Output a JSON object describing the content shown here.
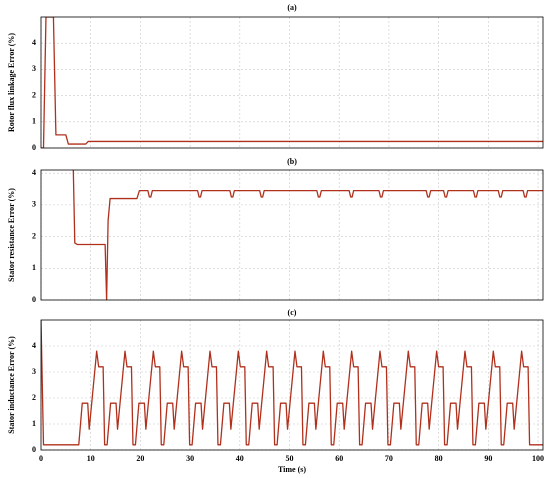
{
  "chart_data": [
    {
      "type": "line",
      "title": "(a)",
      "y_label": "Rotor flux linkage Error (%)",
      "xlim": [
        0,
        101
      ],
      "ylim": [
        0,
        5
      ],
      "xticks": [
        0,
        10,
        20,
        30,
        40,
        50,
        60,
        70,
        80,
        90,
        100
      ],
      "show_xtick_labels": false,
      "yticks": [
        0,
        1,
        2,
        3,
        4
      ],
      "grid": true,
      "color": "#b0301c",
      "x": [
        0,
        0.5,
        1,
        2.5,
        3,
        5,
        5.5,
        9,
        9.5,
        101
      ],
      "values": [
        0,
        0,
        5,
        5,
        0.5,
        0.5,
        0.15,
        0.15,
        0.25,
        0.25
      ]
    },
    {
      "type": "line",
      "title": "(b)",
      "y_label": "Stator resistance Error (%)",
      "xlim": [
        0,
        101
      ],
      "ylim": [
        0,
        4.1
      ],
      "xticks": [
        0,
        10,
        20,
        30,
        40,
        50,
        60,
        70,
        80,
        90,
        100
      ],
      "show_xtick_labels": false,
      "yticks": [
        0,
        1,
        2,
        3,
        4
      ],
      "grid": true,
      "color": "#b0301c",
      "x": [
        6.5,
        6.8,
        7.3,
        12.9,
        13.2,
        13.5,
        13.9,
        19.3,
        19.8,
        21.5,
        21.8,
        22.1,
        22.4,
        31.5,
        31.8,
        32.1,
        32.4,
        38,
        38.3,
        38.6,
        38.9,
        44,
        44.3,
        44.6,
        44.9,
        55.5,
        55.8,
        56.1,
        56.4,
        62,
        62.3,
        62.6,
        62.9,
        68,
        68.3,
        68.6,
        68.9,
        77.5,
        77.8,
        78.1,
        78.4,
        81,
        81.3,
        81.6,
        81.9,
        87,
        87.3,
        87.6,
        87.9,
        92,
        92.3,
        92.6,
        92.9,
        97,
        97.3,
        97.6,
        97.9,
        101
      ],
      "values": [
        4.1,
        1.8,
        1.75,
        1.75,
        0,
        2.5,
        3.2,
        3.2,
        3.45,
        3.45,
        3.25,
        3.25,
        3.45,
        3.45,
        3.25,
        3.25,
        3.45,
        3.45,
        3.25,
        3.25,
        3.45,
        3.45,
        3.25,
        3.25,
        3.45,
        3.45,
        3.25,
        3.25,
        3.45,
        3.45,
        3.25,
        3.25,
        3.45,
        3.45,
        3.25,
        3.25,
        3.45,
        3.45,
        3.25,
        3.25,
        3.45,
        3.45,
        3.25,
        3.25,
        3.45,
        3.45,
        3.25,
        3.25,
        3.45,
        3.45,
        3.25,
        3.25,
        3.45,
        3.45,
        3.25,
        3.25,
        3.45,
        3.45
      ]
    },
    {
      "type": "line",
      "title": "(c)",
      "y_label": "Stator inductance Error (%)",
      "x_label": "Time (s)",
      "xlim": [
        0,
        101
      ],
      "ylim": [
        0,
        5
      ],
      "xticks": [
        0,
        10,
        20,
        30,
        40,
        50,
        60,
        70,
        80,
        90,
        100
      ],
      "show_xtick_labels": true,
      "yticks": [
        0,
        1,
        2,
        3,
        4
      ],
      "grid": true,
      "color": "#b0301c",
      "x": [
        0,
        0.5,
        7.6,
        8.3,
        9.4,
        9.7,
        11.2,
        11.6,
        12.5,
        12.8,
        13.3,
        14.0,
        15.1,
        15.4,
        16.9,
        17.3,
        18.2,
        18.5,
        19.0,
        19.7,
        20.8,
        21.1,
        22.6,
        23.0,
        23.9,
        24.2,
        24.7,
        25.4,
        26.5,
        26.8,
        28.3,
        28.7,
        29.6,
        29.9,
        30.4,
        31.1,
        32.2,
        32.5,
        34.0,
        34.4,
        35.3,
        35.6,
        36.1,
        36.8,
        37.9,
        38.2,
        39.7,
        40.1,
        41.0,
        41.3,
        41.8,
        42.5,
        43.6,
        43.9,
        45.4,
        45.8,
        46.7,
        47.0,
        47.5,
        48.2,
        49.3,
        49.6,
        51.1,
        51.5,
        52.4,
        52.7,
        53.2,
        53.9,
        55.0,
        55.3,
        56.8,
        57.2,
        58.1,
        58.4,
        58.9,
        59.6,
        60.7,
        61.0,
        62.5,
        62.9,
        63.8,
        64.1,
        64.6,
        65.3,
        66.4,
        66.7,
        68.2,
        68.6,
        69.5,
        69.8,
        70.3,
        71.0,
        72.1,
        72.4,
        73.9,
        74.3,
        75.2,
        75.5,
        76.0,
        76.7,
        77.8,
        78.1,
        79.6,
        80.0,
        80.9,
        81.2,
        81.7,
        82.4,
        83.5,
        83.8,
        85.3,
        85.7,
        86.6,
        86.9,
        87.4,
        88.1,
        89.2,
        89.5,
        91.0,
        91.4,
        92.3,
        92.6,
        93.1,
        93.8,
        94.9,
        95.2,
        96.7,
        97.1,
        98.0,
        98.3,
        101
      ],
      "values": [
        5,
        0.2,
        0.2,
        1.8,
        1.8,
        0.8,
        3.8,
        3.2,
        3.2,
        0.2,
        0.2,
        1.8,
        1.8,
        0.8,
        3.8,
        3.2,
        3.2,
        0.2,
        0.2,
        1.8,
        1.8,
        0.8,
        3.8,
        3.2,
        3.2,
        0.2,
        0.2,
        1.8,
        1.8,
        0.8,
        3.8,
        3.2,
        3.2,
        0.2,
        0.2,
        1.8,
        1.8,
        0.8,
        3.8,
        3.2,
        3.2,
        0.2,
        0.2,
        1.8,
        1.8,
        0.8,
        3.8,
        3.2,
        3.2,
        0.2,
        0.2,
        1.8,
        1.8,
        0.8,
        3.8,
        3.2,
        3.2,
        0.2,
        0.2,
        1.8,
        1.8,
        0.8,
        3.8,
        3.2,
        3.2,
        0.2,
        0.2,
        1.8,
        1.8,
        0.8,
        3.8,
        3.2,
        3.2,
        0.2,
        0.2,
        1.8,
        1.8,
        0.8,
        3.8,
        3.2,
        3.2,
        0.2,
        0.2,
        1.8,
        1.8,
        0.8,
        3.8,
        3.2,
        3.2,
        0.2,
        0.2,
        1.8,
        1.8,
        0.8,
        3.8,
        3.2,
        3.2,
        0.2,
        0.2,
        1.8,
        1.8,
        0.8,
        3.8,
        3.2,
        3.2,
        0.2,
        0.2,
        1.8,
        1.8,
        0.8,
        3.8,
        3.2,
        3.2,
        0.2,
        0.2,
        1.8,
        1.8,
        0.8,
        3.8,
        3.2,
        3.2,
        0.2,
        0.2,
        1.8,
        1.8,
        0.8,
        3.8,
        3.2,
        3.2,
        0.2,
        0.2
      ]
    }
  ]
}
